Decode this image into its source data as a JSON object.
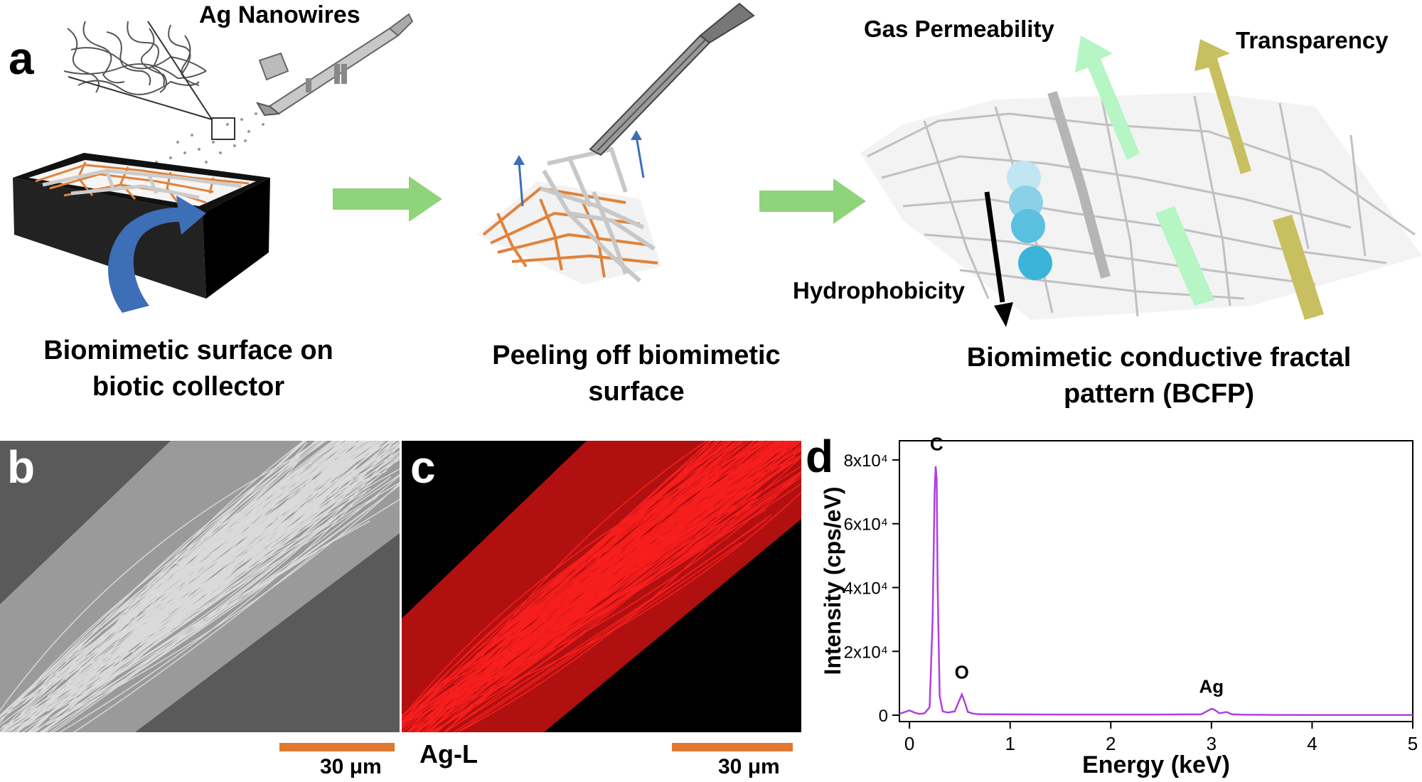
{
  "panel_a": {
    "letter": "a",
    "ag_nanowires": "Ag Nanowires",
    "caption_1": [
      "Biomimetic surface on",
      "biotic collector"
    ],
    "caption_2": [
      "Peeling off biomimetic",
      "surface"
    ],
    "caption_3": [
      "Biomimetic conductive fractal",
      "pattern (BCFP)"
    ],
    "gas_permeability": "Gas Permeability",
    "transparency": "Transparency",
    "hydrophobicity": "Hydrophobicity",
    "colors": {
      "flow_arrow": "#8fd47a",
      "gas_arrow": "#b6f5c4",
      "transparency_arrow": "#c8c060",
      "curve_arrow": "#3d6fb7",
      "orange_mesh": "#e0823a",
      "droplet": "#3ab4d8"
    }
  },
  "panel_b": {
    "letter": "b",
    "scale_label": "30 μm"
  },
  "panel_c": {
    "letter": "c",
    "element_label": "Ag-L",
    "scale_label": "30 μm"
  },
  "panel_d": {
    "letter": "d"
  },
  "chart_data": {
    "type": "line",
    "xlabel": "Energy (keV)",
    "ylabel": "Intensity (cps/eV)",
    "xlim": [
      -0.1,
      5
    ],
    "ylim": [
      -2000,
      86000
    ],
    "x_ticks": [
      "0",
      "1",
      "2",
      "3",
      "4",
      "5"
    ],
    "y_ticks": [
      "0",
      "2x10⁴",
      "4x10⁴",
      "6x10⁴",
      "8x10⁴"
    ],
    "series": [
      {
        "color": "#b040e0",
        "x": [
          -0.1,
          0.0,
          0.05,
          0.1,
          0.15,
          0.2,
          0.23,
          0.25,
          0.26,
          0.27,
          0.28,
          0.3,
          0.33,
          0.38,
          0.45,
          0.5,
          0.52,
          0.55,
          0.58,
          0.63,
          0.7,
          1.0,
          1.5,
          2.0,
          2.5,
          2.9,
          2.97,
          3.0,
          3.03,
          3.08,
          3.15,
          3.2,
          3.3,
          3.6,
          4.0,
          4.5,
          5.0
        ],
        "y": [
          400,
          1500,
          800,
          400,
          600,
          2500,
          30000,
          70000,
          78000,
          74000,
          40000,
          6000,
          1200,
          800,
          1200,
          5000,
          6500,
          4000,
          1000,
          500,
          300,
          250,
          200,
          200,
          200,
          300,
          1500,
          2000,
          1700,
          600,
          1000,
          300,
          150,
          100,
          80,
          60,
          50
        ]
      }
    ],
    "annotations": [
      {
        "text": "C",
        "x": 0.27,
        "y": 83000
      },
      {
        "text": "O",
        "x": 0.52,
        "y": 11500
      },
      {
        "text": "Ag",
        "x": 3.0,
        "y": 7000
      }
    ]
  }
}
